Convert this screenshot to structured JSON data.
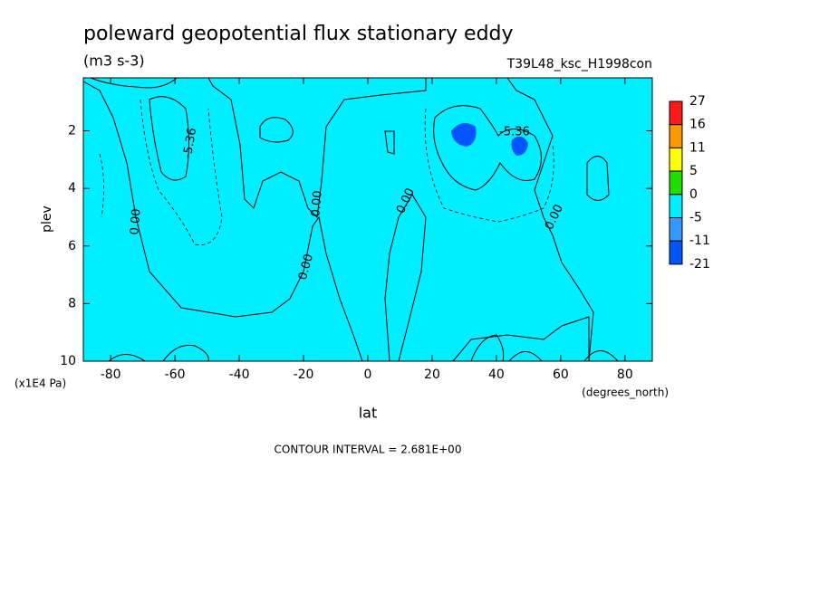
{
  "chart_data": {
    "type": "contour",
    "title": "poleward geopotential flux stationary eddy",
    "subtitle": "(m3 s-3)",
    "dataset": "T39L48_ksc_H1998con",
    "x_label": "lat",
    "x_units": "(degrees_north)",
    "y_label": "plev",
    "y_units": "(x1E4 Pa)",
    "xlim": [
      -88.5,
      88.5
    ],
    "xticks": [
      -80,
      -60,
      -40,
      -20,
      0,
      20,
      40,
      60,
      80
    ],
    "ylim": [
      10,
      0.16
    ],
    "yticks": [
      2,
      4,
      6,
      8,
      10
    ],
    "colorbar": {
      "levels": [
        27,
        16,
        11,
        5,
        0,
        -5,
        -11,
        -21
      ],
      "colors": [
        "#ff1a1a",
        "#ff9900",
        "#ffff00",
        "#22dd00",
        "#00eeff",
        "#3399ff",
        "#0055ff"
      ]
    },
    "contour_labels": [
      "-5.36",
      "0.00"
    ],
    "note": "CONTOUR INTERVAL = 2.681E+00"
  }
}
